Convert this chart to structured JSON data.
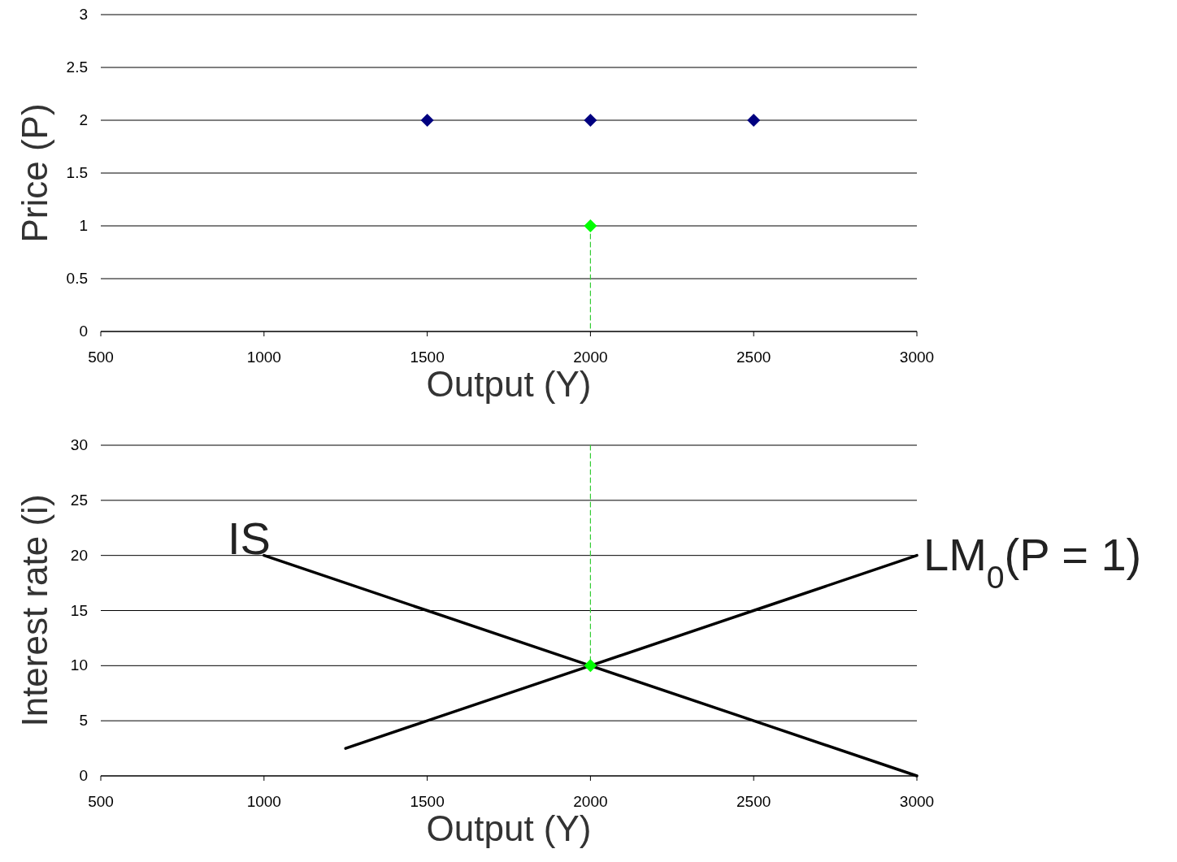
{
  "chart_data": [
    {
      "type": "scatter",
      "xlabel": "Output (Y)",
      "ylabel": "Price (P)",
      "xlim": [
        500,
        3000
      ],
      "xticks": [
        500,
        1000,
        1500,
        2000,
        2500,
        3000
      ],
      "ylim": [
        0,
        3
      ],
      "yticks": [
        0,
        0.5,
        1,
        1.5,
        2,
        2.5,
        3
      ],
      "grid": "y",
      "marker": "diamond",
      "series": [
        {
          "type": "line",
          "color": "#33cc33",
          "line_style": "dashed",
          "marker": "none",
          "x": [
            2000,
            2000
          ],
          "values": [
            1,
            0
          ]
        },
        {
          "color": "#000080",
          "x": [
            1500,
            2000,
            2500
          ],
          "values": [
            2,
            2,
            2
          ]
        },
        {
          "color": "#00ff00",
          "x": [
            2000
          ],
          "values": [
            1
          ]
        }
      ]
    },
    {
      "type": "line",
      "xlabel": "Output (Y)",
      "ylabel": "Interest rate (i)",
      "xlim": [
        500,
        3000
      ],
      "xticks": [
        500,
        1000,
        1500,
        2000,
        2500,
        3000
      ],
      "ylim": [
        0,
        30
      ],
      "yticks": [
        0,
        5,
        10,
        15,
        20,
        25,
        30
      ],
      "grid": "y",
      "marker": "none",
      "series": [
        {
          "color": "#33cc33",
          "line_style": "dashed",
          "x": [
            2000,
            2000
          ],
          "values": [
            30,
            10
          ]
        },
        {
          "name": "IS",
          "color": "#000000",
          "line_style": "solid",
          "x": [
            1000,
            1500,
            2000,
            2500,
            3000
          ],
          "values": [
            20,
            15,
            10,
            5,
            0
          ]
        },
        {
          "name": "LM$_{0}$(P = 1)",
          "color": "#000000",
          "line_style": "solid",
          "x": [
            1250,
            1500,
            2000,
            2500,
            3000
          ],
          "values": [
            2.5,
            5,
            10,
            15,
            20
          ]
        },
        {
          "type": "scatter",
          "marker": "diamond",
          "color": "#00ff00",
          "x": [
            2000
          ],
          "values": [
            10
          ]
        }
      ]
    }
  ]
}
